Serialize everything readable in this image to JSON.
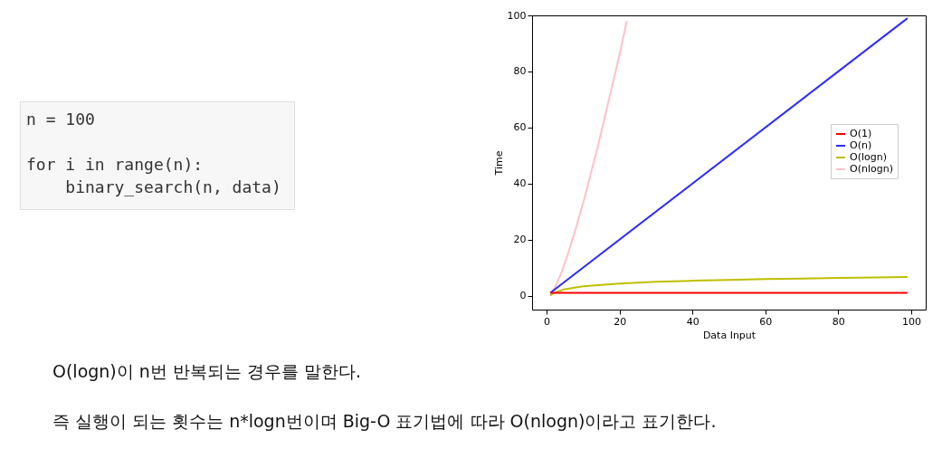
{
  "chart_data": {
    "type": "line",
    "xlabel": "Data Input",
    "ylabel": "Time",
    "xlim": [
      -4,
      104
    ],
    "ylim": [
      -5,
      100
    ],
    "xticks": [
      0,
      20,
      40,
      60,
      80,
      100
    ],
    "yticks": [
      0,
      20,
      40,
      60,
      80,
      100
    ],
    "grid": false,
    "legend": "right",
    "line_style": "solid",
    "marker": "none",
    "series": [
      {
        "name": "O(1)",
        "color": "#ff0000",
        "x": [
          1,
          99
        ],
        "values": [
          1,
          1
        ]
      },
      {
        "name": "O(n)",
        "color": "#2b2bff",
        "x": [
          1,
          99
        ],
        "values": [
          1,
          99
        ]
      },
      {
        "name": "O(logn)",
        "color": "#bfbf00",
        "x": [
          1,
          2,
          5,
          10,
          20,
          30,
          40,
          50,
          60,
          70,
          80,
          90,
          99
        ],
        "values": [
          0,
          1,
          2.3,
          3.3,
          4.3,
          4.9,
          5.3,
          5.6,
          5.9,
          6.1,
          6.3,
          6.5,
          6.6
        ]
      },
      {
        "name": "O(nlogn)",
        "color": "#ffc0cb",
        "x": [
          1,
          2,
          4,
          6,
          8,
          10,
          12,
          14,
          16,
          18,
          20,
          22
        ],
        "values": [
          0,
          2,
          8,
          15.5,
          24,
          33,
          43,
          53,
          64,
          75,
          86,
          98
        ]
      }
    ],
    "annotations": [
      "n = 100\n\nfor i in range(n):\n    binary_search(n, data)",
      "O(logn)이 n번 반복되는 경우를 말한다.",
      "즉 실행이 되는 횟수는 n*logn번이며 Big-O 표기법에 따라 O(nlogn)이라고 표기한다."
    ]
  }
}
